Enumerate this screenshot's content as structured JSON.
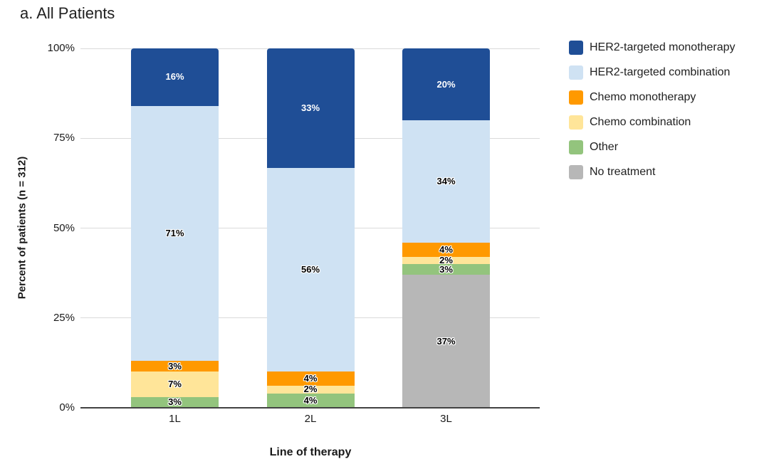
{
  "title": "a. All Patients",
  "colors": {
    "background": "#FFFFFF",
    "axis_line": "#424242",
    "gridline": "#DADADA",
    "label_on_dark": "#FFFFFF",
    "label_on_light": "#000000",
    "text": "#212121"
  },
  "chart_data": {
    "type": "bar",
    "stacked": true,
    "title": "a. All Patients",
    "categories": [
      "1L",
      "2L",
      "3L"
    ],
    "series": [
      {
        "name": "HER2-targeted monotherapy",
        "color": "#1F4E96",
        "label_color": "#FFFFFF",
        "values": [
          16,
          33,
          20
        ]
      },
      {
        "name": "HER2-targeted combination",
        "color": "#CFE2F3",
        "values": [
          71,
          56,
          34
        ]
      },
      {
        "name": "Chemo monotherapy",
        "color": "#FF9900",
        "values": [
          3,
          4,
          4
        ]
      },
      {
        "name": "Chemo combination",
        "color": "#FFE599",
        "values": [
          7,
          2,
          2
        ]
      },
      {
        "name": "Other",
        "color": "#93C47D",
        "values": [
          3,
          4,
          3
        ]
      },
      {
        "name": "No treatment",
        "color": "#B7B7B7",
        "values": [
          0,
          0,
          37
        ]
      }
    ],
    "xlabel": "Line of therapy",
    "ylabel": "Percent of patients (n = 312)",
    "ylim": [
      0,
      100
    ],
    "yticks": [
      {
        "value": 0,
        "label": "0%"
      },
      {
        "value": 25,
        "label": "25%"
      },
      {
        "value": 50,
        "label": "50%"
      },
      {
        "value": 75,
        "label": "75%"
      },
      {
        "value": 100,
        "label": "100%"
      }
    ],
    "grid": true,
    "legend_position": "right",
    "data_label_format": "{value}%"
  }
}
